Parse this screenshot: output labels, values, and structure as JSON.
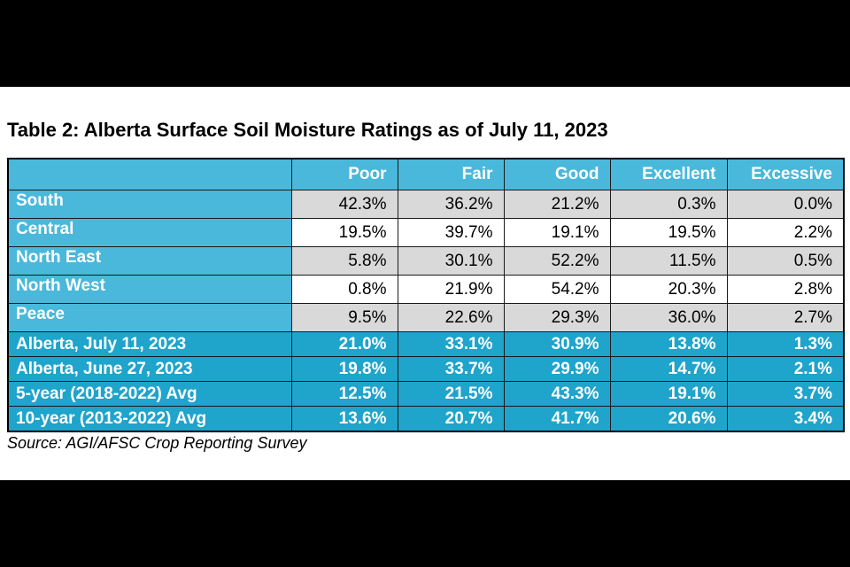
{
  "title": "Table 2: Alberta Surface Soil Moisture Ratings as of July 11, 2023",
  "columns": [
    "",
    "Poor",
    "Fair",
    "Good",
    "Excellent",
    "Excessive"
  ],
  "rows": [
    {
      "label": "South",
      "values": [
        "42.3%",
        "36.2%",
        "21.2%",
        "0.3%",
        "0.0%"
      ]
    },
    {
      "label": "Central",
      "values": [
        "19.5%",
        "39.7%",
        "19.1%",
        "19.5%",
        "2.2%"
      ]
    },
    {
      "label": "North East",
      "values": [
        "5.8%",
        "30.1%",
        "52.2%",
        "11.5%",
        "0.5%"
      ]
    },
    {
      "label": "North West",
      "values": [
        "0.8%",
        "21.9%",
        "54.2%",
        "20.3%",
        "2.8%"
      ]
    },
    {
      "label": "Peace",
      "values": [
        "9.5%",
        "22.6%",
        "29.3%",
        "36.0%",
        "2.7%"
      ]
    },
    {
      "label": "Alberta, July 11, 2023",
      "values": [
        "21.0%",
        "33.1%",
        "30.9%",
        "13.8%",
        "1.3%"
      ]
    },
    {
      "label": "Alberta, June 27, 2023",
      "values": [
        "19.8%",
        "33.7%",
        "29.9%",
        "14.7%",
        "2.1%"
      ]
    },
    {
      "label": "5-year (2018-2022) Avg",
      "values": [
        "12.5%",
        "21.5%",
        "43.3%",
        "19.1%",
        "3.7%"
      ]
    },
    {
      "label": "10-year (2013-2022) Avg",
      "values": [
        "13.6%",
        "20.7%",
        "41.7%",
        "20.6%",
        "3.4%"
      ]
    }
  ],
  "source": "Source: AGI/AFSC Crop Reporting Survey",
  "colors": {
    "header_bg": "#4ab8da",
    "summary_bg": "#1fa4cb",
    "shade_row_bg": "#d9d9d9",
    "plain_row_bg": "#ffffff",
    "letterbox": "#000000"
  }
}
